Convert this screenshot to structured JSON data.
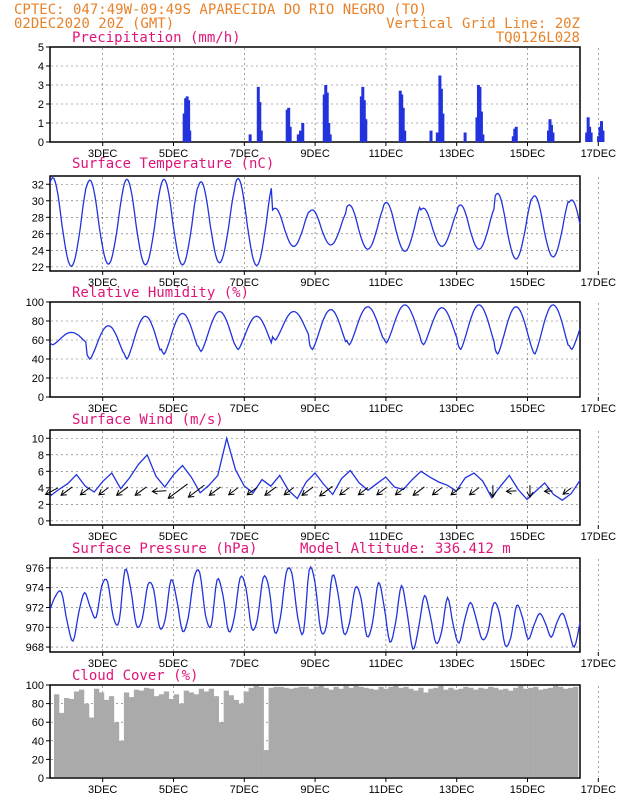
{
  "header": {
    "line1_left": "CPTEC:  047:49W-09:49S  APARECIDA DO RIO NEGRO (TO)",
    "line2_left": "02DEC2020 20Z (GMT)",
    "line1_right": "Vertical Grid Line: 20Z",
    "line2_right": "TQ0126L028"
  },
  "colors": {
    "header": "#e8822a",
    "title": "#e0157a",
    "series": "#2233dd",
    "cloud": "#aaaaaa",
    "arrow": "#000000"
  },
  "model_altitude_label": "Model Altitude: 336.412 m",
  "chart_data": [
    {
      "type": "bar",
      "id": "precip",
      "title": "Precipitation (mm/h)",
      "ylim": [
        0,
        5
      ],
      "yticks": [
        0,
        1,
        2,
        3,
        4,
        5
      ],
      "xticks": [
        "3DEC",
        "5DEC",
        "7DEC",
        "9DEC",
        "11DEC",
        "13DEC",
        "15DEC",
        "17DEC"
      ],
      "x_unit": "days since 02DEC2020 20Z",
      "bars": [
        {
          "x": 3.62,
          "v": 1.5
        },
        {
          "x": 3.66,
          "v": 2.3
        },
        {
          "x": 3.7,
          "v": 2.4
        },
        {
          "x": 3.74,
          "v": 2.2
        },
        {
          "x": 3.77,
          "v": 0.6
        },
        {
          "x": 5.4,
          "v": 0.4
        },
        {
          "x": 5.62,
          "v": 2.9
        },
        {
          "x": 5.66,
          "v": 2.1
        },
        {
          "x": 5.7,
          "v": 0.6
        },
        {
          "x": 6.4,
          "v": 1.7
        },
        {
          "x": 6.44,
          "v": 1.8
        },
        {
          "x": 6.48,
          "v": 0.8
        },
        {
          "x": 6.7,
          "v": 0.4
        },
        {
          "x": 6.76,
          "v": 0.6
        },
        {
          "x": 6.82,
          "v": 1.0
        },
        {
          "x": 7.4,
          "v": 2.5
        },
        {
          "x": 7.44,
          "v": 3.0
        },
        {
          "x": 7.48,
          "v": 2.6
        },
        {
          "x": 7.52,
          "v": 1.0
        },
        {
          "x": 7.56,
          "v": 0.4
        },
        {
          "x": 8.4,
          "v": 2.4
        },
        {
          "x": 8.44,
          "v": 2.9
        },
        {
          "x": 8.48,
          "v": 2.2
        },
        {
          "x": 8.52,
          "v": 1.2
        },
        {
          "x": 9.45,
          "v": 2.7
        },
        {
          "x": 9.49,
          "v": 2.5
        },
        {
          "x": 9.53,
          "v": 1.8
        },
        {
          "x": 9.57,
          "v": 0.6
        },
        {
          "x": 10.28,
          "v": 0.6
        },
        {
          "x": 10.45,
          "v": 0.5
        },
        {
          "x": 10.52,
          "v": 3.5
        },
        {
          "x": 10.56,
          "v": 2.8
        },
        {
          "x": 10.6,
          "v": 1.5
        },
        {
          "x": 11.2,
          "v": 0.5
        },
        {
          "x": 11.52,
          "v": 1.3
        },
        {
          "x": 11.56,
          "v": 3.0
        },
        {
          "x": 11.6,
          "v": 2.9
        },
        {
          "x": 11.64,
          "v": 1.6
        },
        {
          "x": 11.68,
          "v": 0.4
        },
        {
          "x": 12.5,
          "v": 0.3
        },
        {
          "x": 12.54,
          "v": 0.7
        },
        {
          "x": 12.58,
          "v": 0.8
        },
        {
          "x": 13.45,
          "v": 0.6
        },
        {
          "x": 13.49,
          "v": 1.2
        },
        {
          "x": 13.53,
          "v": 0.9
        },
        {
          "x": 13.57,
          "v": 0.5
        },
        {
          "x": 14.48,
          "v": 0.5
        },
        {
          "x": 14.52,
          "v": 1.3
        },
        {
          "x": 14.56,
          "v": 0.8
        },
        {
          "x": 14.6,
          "v": 0.5
        },
        {
          "x": 14.8,
          "v": 0.3
        },
        {
          "x": 14.84,
          "v": 0.8
        },
        {
          "x": 14.88,
          "v": 1.1
        },
        {
          "x": 14.92,
          "v": 0.6
        }
      ]
    },
    {
      "type": "line",
      "id": "temp",
      "title": "Surface Temperature (nC)",
      "ylim": [
        21.5,
        33
      ],
      "yticks": [
        22,
        24,
        26,
        28,
        30,
        32
      ],
      "xticks": [
        "3DEC",
        "5DEC",
        "7DEC",
        "9DEC",
        "11DEC",
        "13DEC",
        "15DEC",
        "17DEC"
      ],
      "amp": [
        5.8,
        5.5,
        5.6,
        5.6,
        5.3,
        5.7,
        2.5,
        2.3,
        2.9,
        3.2,
        2.5,
        2.9,
        4.3,
        4.0,
        3.5,
        2.2,
        2.2,
        1.8
      ]
    },
    {
      "type": "line",
      "id": "rh",
      "title": "Relative Humidity (%)",
      "ylim": [
        0,
        100
      ],
      "yticks": [
        0,
        20,
        40,
        60,
        80,
        100
      ],
      "xticks": [
        "3DEC",
        "5DEC",
        "7DEC",
        "9DEC",
        "11DEC",
        "13DEC",
        "15DEC",
        "17DEC"
      ],
      "min": [
        55,
        40,
        40,
        45,
        48,
        50,
        60,
        50,
        55,
        57,
        55,
        50,
        45,
        45,
        50,
        40,
        50,
        55
      ],
      "max": [
        68,
        75,
        85,
        88,
        90,
        85,
        90,
        92,
        95,
        97,
        94,
        97,
        95,
        97,
        90,
        92,
        98,
        100
      ]
    },
    {
      "type": "line",
      "id": "wind",
      "title": "Surface Wind (m/s)",
      "ylim": [
        -0.5,
        11
      ],
      "yticks": [
        0,
        2,
        4,
        6,
        8,
        10
      ],
      "xticks": [
        "3DEC",
        "5DEC",
        "7DEC",
        "9DEC",
        "11DEC",
        "13DEC",
        "15DEC",
        "17DEC"
      ],
      "values": [
        3.0,
        3.8,
        4.5,
        5.6,
        4.2,
        3.5,
        4.8,
        5.8,
        3.9,
        5.2,
        6.8,
        8.0,
        5.4,
        4.1,
        5.6,
        6.7,
        5.3,
        3.4,
        4.3,
        5.5,
        10.0,
        6.2,
        4.2,
        3.4,
        5.0,
        4.2,
        5.5,
        3.7,
        2.7,
        4.7,
        5.8,
        4.4,
        3.2,
        5.1,
        6.1,
        4.6,
        3.7,
        4.5,
        5.3,
        4.1,
        3.8,
        5.0,
        6.0,
        5.3,
        4.7,
        4.3,
        3.6,
        5.2,
        5.8,
        4.8,
        2.8,
        4.2,
        5.5,
        3.8,
        2.6,
        3.6,
        4.6,
        3.2,
        2.5,
        3.3,
        4.9
      ],
      "arrows": [
        {
          "x": 0.05,
          "dir": "sw-e",
          "len": 14
        },
        {
          "x": 0.45,
          "dir": "ne-sw",
          "len": 14
        },
        {
          "x": 0.95,
          "dir": "ne-sw",
          "len": 12
        },
        {
          "x": 1.45,
          "dir": "ne-sw",
          "len": 12
        },
        {
          "x": 1.95,
          "dir": "ne-sw",
          "len": 14
        },
        {
          "x": 2.45,
          "dir": "ne-sw",
          "len": 14
        },
        {
          "x": 2.95,
          "dir": "e-w",
          "len": 14
        },
        {
          "x": 3.45,
          "dir": "ne-sw",
          "len": 24
        },
        {
          "x": 3.95,
          "dir": "ne-sw",
          "len": 20
        },
        {
          "x": 4.45,
          "dir": "ne-sw",
          "len": 14
        },
        {
          "x": 4.95,
          "dir": "ne-sw",
          "len": 12
        },
        {
          "x": 5.45,
          "dir": "ne-sw",
          "len": 12
        },
        {
          "x": 5.95,
          "dir": "ne-sw",
          "len": 14
        },
        {
          "x": 6.45,
          "dir": "ne-sw",
          "len": 12
        },
        {
          "x": 6.95,
          "dir": "ne-sw",
          "len": 14
        },
        {
          "x": 7.45,
          "dir": "ne-sw",
          "len": 16
        },
        {
          "x": 7.95,
          "dir": "ne-sw",
          "len": 12
        },
        {
          "x": 8.45,
          "dir": "ne-sw",
          "len": 12
        },
        {
          "x": 8.95,
          "dir": "ne-sw",
          "len": 12
        },
        {
          "x": 9.45,
          "dir": "ne-sw",
          "len": 12
        },
        {
          "x": 9.95,
          "dir": "ne-sw",
          "len": 14
        },
        {
          "x": 10.45,
          "dir": "ne-sw",
          "len": 12
        },
        {
          "x": 10.95,
          "dir": "ne-sw",
          "len": 12
        },
        {
          "x": 11.45,
          "dir": "ne-sw",
          "len": 12
        },
        {
          "x": 11.95,
          "dir": "n-s",
          "len": 12
        },
        {
          "x": 12.45,
          "dir": "e-w",
          "len": 10
        },
        {
          "x": 12.95,
          "dir": "n-s",
          "len": 12
        },
        {
          "x": 13.45,
          "dir": "e-w",
          "len": 8
        },
        {
          "x": 13.95,
          "dir": "ne-sw",
          "len": 10
        }
      ]
    },
    {
      "type": "line",
      "id": "pres",
      "title": "Surface Pressure (hPa)",
      "ylim": [
        967.5,
        977
      ],
      "yticks": [
        968,
        970,
        972,
        974,
        976
      ],
      "xticks": [
        "3DEC",
        "5DEC",
        "7DEC",
        "9DEC",
        "11DEC",
        "13DEC",
        "15DEC",
        "17DEC"
      ],
      "values": [
        971.8,
        973.2,
        973.5,
        970.5,
        968.6,
        971.5,
        973.5,
        972.0,
        971.0,
        974.2,
        974.6,
        971.0,
        970.6,
        975.8,
        973.9,
        970.2,
        970.8,
        974.3,
        973.8,
        970.0,
        970.8,
        974.8,
        972.8,
        969.6,
        971.0,
        975.0,
        975.5,
        971.2,
        970.2,
        974.8,
        973.3,
        969.6,
        971.0,
        975.0,
        974.0,
        969.9,
        970.8,
        975.0,
        974.0,
        969.5,
        971.0,
        975.5,
        975.4,
        971.0,
        969.5,
        975.8,
        974.5,
        969.7,
        970.2,
        975.2,
        973.4,
        969.4,
        970.5,
        974.0,
        972.9,
        969.1,
        970.5,
        974.5,
        972.1,
        968.5,
        970.5,
        974.2,
        971.4,
        967.8,
        970.0,
        973.2,
        971.2,
        968.4,
        969.6,
        973.0,
        970.2,
        968.4,
        970.8,
        972.5,
        970.8,
        968.8,
        969.5,
        972.4,
        971.5,
        968.2,
        969.0,
        972.2,
        971.0,
        968.8,
        970.2,
        971.4,
        970.4,
        969.0,
        970.5,
        971.4,
        969.8,
        968.0,
        970.5
      ]
    },
    {
      "type": "bar",
      "id": "cloud",
      "title": "Cloud Cover (%)",
      "ylim": [
        0,
        100
      ],
      "yticks": [
        0,
        20,
        40,
        60,
        80,
        100
      ],
      "xticks": [
        "3DEC",
        "5DEC",
        "7DEC",
        "9DEC",
        "11DEC",
        "13DEC",
        "15DEC",
        "17DEC"
      ],
      "values": [
        90,
        70,
        86,
        85,
        93,
        95,
        80,
        65,
        96,
        92,
        84,
        88,
        60,
        40,
        92,
        87,
        95,
        94,
        97,
        96,
        88,
        90,
        93,
        85,
        90,
        80,
        94,
        92,
        90,
        96,
        93,
        96,
        88,
        60,
        94,
        89,
        84,
        80,
        93,
        97,
        99,
        98,
        30,
        97,
        98,
        98,
        97,
        96,
        97,
        98,
        98,
        96,
        98,
        99,
        97,
        95,
        98,
        96,
        99,
        97,
        99,
        98,
        97,
        96,
        95,
        98,
        96,
        98,
        99,
        97,
        98,
        96,
        94,
        97,
        92,
        96,
        97,
        99,
        95,
        97,
        95,
        96,
        98,
        97,
        95,
        97,
        96,
        98,
        97,
        95,
        96,
        94,
        97,
        99,
        96,
        97,
        98,
        95,
        96,
        97,
        99,
        98,
        96,
        97,
        98
      ]
    }
  ]
}
